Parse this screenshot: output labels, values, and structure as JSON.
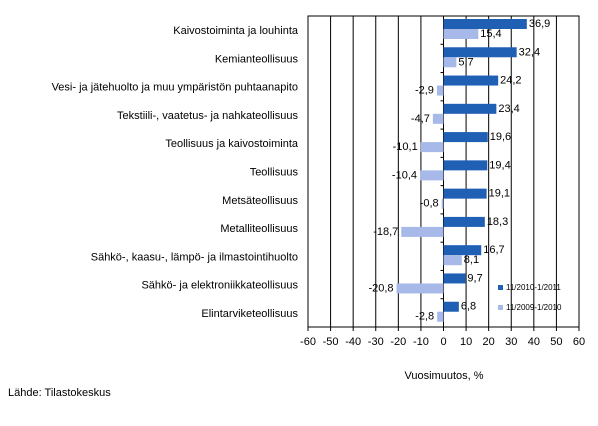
{
  "chart_data": {
    "type": "bar",
    "orientation": "horizontal",
    "categories": [
      "Kaivostoiminta ja louhinta",
      "Kemianteollisuus",
      "Vesi- ja jätehuolto ja muu ympäristön puhtaanapito",
      "Tekstiili-, vaatetus- ja nahkateollisuus",
      "Teollisuus ja kaivostoiminta",
      "Teollisuus",
      "Metsäteollisuus",
      "Metalliteollisuus",
      "Sähkö-, kaasu-, lämpö- ja ilmastointihuolto",
      "Sähkö- ja elektroniikkateollisuus",
      "Elintarviketeollisuus"
    ],
    "series": [
      {
        "name": "11/2010-1/2011",
        "color": "#1F5FB4",
        "values": [
          36.9,
          32.4,
          24.2,
          23.4,
          19.6,
          19.4,
          19.1,
          18.3,
          16.7,
          9.7,
          6.8
        ],
        "labels": [
          "36,9",
          "32,4",
          "24,2",
          "23,4",
          "19,6",
          "19,4",
          "19,1",
          "18,3",
          "16,7",
          "9,7",
          "6,8"
        ]
      },
      {
        "name": "11/2009-1/2010",
        "color": "#A7B9E8",
        "values": [
          15.4,
          5.7,
          -2.9,
          -4.7,
          -10.1,
          -10.4,
          -0.8,
          -18.7,
          8.1,
          -20.8,
          -2.8
        ],
        "labels": [
          "15,4",
          "5,7",
          "-2,9",
          "-4,7",
          "-10,1",
          "-10,4",
          "-0,8",
          "-18,7",
          "8,1",
          "-20,8",
          "-2,8"
        ]
      }
    ],
    "xlim": [
      -60,
      60
    ],
    "xticks": [
      -60,
      -50,
      -40,
      -30,
      -20,
      -10,
      0,
      10,
      20,
      30,
      40,
      50,
      60
    ],
    "xlabel": "Vuosimuutos, %",
    "grid": "vertical",
    "legend_position": "right"
  },
  "source": "Lähde: Tilastokeskus"
}
